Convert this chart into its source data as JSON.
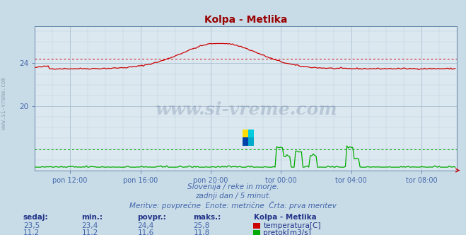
{
  "title": "Kolpa - Metlika",
  "title_color": "#990000",
  "bg_color": "#c8dce8",
  "plot_bg_color": "#dce8f0",
  "grid_color_major": "#a0b8cc",
  "grid_color_minor": "#b8ccd8",
  "xlabel_ticks": [
    "pon 12:00",
    "pon 16:00",
    "pon 20:00",
    "tor 00:00",
    "tor 04:00",
    "tor 08:00"
  ],
  "yticks": [
    20,
    24
  ],
  "ylim": [
    14.0,
    27.5
  ],
  "xlim_max": 288,
  "temp_avg": 24.4,
  "temp_min": 23.4,
  "temp_max": 25.8,
  "temp_current": 23.5,
  "flow_avg": 11.6,
  "flow_min": 11.2,
  "flow_max": 11.8,
  "flow_current": 11.2,
  "watermark": "www.si-vreme.com",
  "subtitle1": "Slovenija / reke in morje.",
  "subtitle2": "zadnji dan / 5 minut.",
  "subtitle3": "Meritve: povprečne  Enote: metrične  Črta: prva meritev",
  "legend_title": "Kolpa - Metlika",
  "legend_temp": "temperatura[C]",
  "legend_flow": "pretok[m3/s]",
  "temp_line_color": "#cc0000",
  "flow_line_color": "#00aa00",
  "avg_line_color": "#cc0000",
  "flow_avg_line_color": "#00aa00",
  "axis_color": "#6688aa",
  "tick_label_color": "#4466aa",
  "text_color": "#4466aa",
  "table_header_color": "#223388",
  "table_value_color": "#4466aa",
  "flow_display_base": 14.3,
  "flow_display_scale": 2.5,
  "flow_data_min": 11.2,
  "flow_data_range": 0.6
}
